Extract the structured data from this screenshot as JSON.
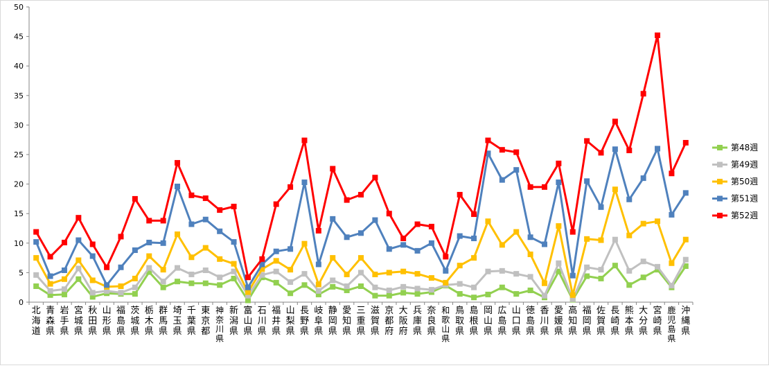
{
  "chart_data": {
    "type": "line",
    "title": "",
    "xlabel": "",
    "ylabel": "",
    "ylim": [
      0,
      50
    ],
    "yticks": [
      0,
      5,
      10,
      15,
      20,
      25,
      30,
      35,
      40,
      45,
      50
    ],
    "grid": false,
    "legend_position": "right",
    "categories": [
      "北海道",
      "青森県",
      "岩手県",
      "宮城県",
      "秋田県",
      "山形県",
      "福島県",
      "茨城県",
      "栃木県",
      "群馬県",
      "埼玉県",
      "千葉県",
      "東京都",
      "神奈川県",
      "新潟県",
      "富山県",
      "石川県",
      "福井県",
      "山梨県",
      "長野県",
      "岐阜県",
      "静岡県",
      "愛知県",
      "三重県",
      "滋賀県",
      "京都府",
      "大阪府",
      "兵庫県",
      "奈良県",
      "和歌山県",
      "鳥取県",
      "島根県",
      "岡山県",
      "広島県",
      "山口県",
      "徳島県",
      "香川県",
      "愛媛県",
      "高知県",
      "福岡県",
      "佐賀県",
      "長崎県",
      "熊本県",
      "大分県",
      "宮崎県",
      "鹿児島県",
      "沖縄県"
    ],
    "series": [
      {
        "name": "第48週",
        "color": "#92d050",
        "marker": "square",
        "values": [
          2.7,
          1.2,
          1.3,
          3.9,
          0.9,
          1.5,
          1.4,
          1.4,
          5.1,
          2.5,
          3.5,
          3.2,
          3.2,
          2.9,
          4.0,
          0.3,
          4.2,
          3.3,
          1.5,
          2.9,
          1.3,
          2.6,
          2.0,
          2.7,
          1.1,
          1.1,
          1.6,
          1.4,
          1.7,
          2.8,
          1.4,
          0.8,
          1.3,
          2.5,
          1.4,
          2.0,
          0.8,
          5.2,
          0.4,
          4.4,
          4.0,
          6.2,
          2.9,
          4.2,
          5.5,
          2.5,
          6.1
        ]
      },
      {
        "name": "第49週",
        "color": "#c0c0c0",
        "marker": "square",
        "values": [
          4.6,
          1.9,
          2.2,
          5.7,
          1.6,
          1.9,
          1.6,
          2.5,
          5.8,
          3.5,
          5.8,
          4.7,
          5.4,
          4.2,
          5.2,
          1.1,
          4.6,
          5.2,
          3.4,
          4.8,
          1.9,
          3.7,
          2.7,
          5.0,
          2.5,
          2.0,
          2.6,
          2.3,
          2.1,
          2.9,
          3.1,
          2.5,
          5.2,
          5.3,
          4.8,
          4.3,
          1.1,
          6.6,
          0.5,
          5.9,
          5.5,
          10.6,
          5.3,
          6.9,
          6.0,
          2.8,
          7.2
        ]
      },
      {
        "name": "第50週",
        "color": "#ffc000",
        "marker": "square",
        "values": [
          7.5,
          3.1,
          3.9,
          7.1,
          3.7,
          2.6,
          2.7,
          4.0,
          7.8,
          5.5,
          11.5,
          7.6,
          9.2,
          7.3,
          6.5,
          1.7,
          5.6,
          7.0,
          5.5,
          9.9,
          3.0,
          7.5,
          4.7,
          7.5,
          4.7,
          5.0,
          5.2,
          4.8,
          4.1,
          3.3,
          6.2,
          7.5,
          13.7,
          9.7,
          11.9,
          8.1,
          3.2,
          12.9,
          1.2,
          10.7,
          10.5,
          19.1,
          11.3,
          13.3,
          13.7,
          6.6,
          10.6
        ]
      },
      {
        "name": "第51週",
        "color": "#4f81bd",
        "marker": "square",
        "values": [
          10.2,
          4.4,
          5.4,
          10.5,
          7.8,
          2.9,
          5.9,
          8.8,
          10.1,
          10.0,
          19.6,
          13.2,
          14.0,
          12.0,
          10.2,
          2.5,
          6.4,
          8.6,
          9.0,
          20.3,
          6.4,
          14.1,
          11.0,
          11.7,
          13.9,
          9.0,
          9.7,
          8.7,
          10.0,
          5.3,
          11.2,
          10.8,
          25.2,
          20.7,
          22.4,
          11.0,
          9.8,
          20.3,
          4.5,
          20.5,
          16.1,
          25.9,
          17.4,
          21.0,
          26.0,
          14.8,
          18.5
        ]
      },
      {
        "name": "第52週",
        "color": "#ff0000",
        "marker": "square",
        "values": [
          11.9,
          7.7,
          10.1,
          14.3,
          9.8,
          5.9,
          11.1,
          17.5,
          13.8,
          13.8,
          23.6,
          18.1,
          17.6,
          15.6,
          16.2,
          4.2,
          7.3,
          16.6,
          19.5,
          27.4,
          12.1,
          22.6,
          17.3,
          18.2,
          21.1,
          15.0,
          10.8,
          13.2,
          12.8,
          7.7,
          18.2,
          14.9,
          27.4,
          25.8,
          25.4,
          19.5,
          19.5,
          23.5,
          11.9,
          27.3,
          25.3,
          30.6,
          25.7,
          35.3,
          45.2,
          21.8,
          27.0
        ]
      }
    ]
  }
}
